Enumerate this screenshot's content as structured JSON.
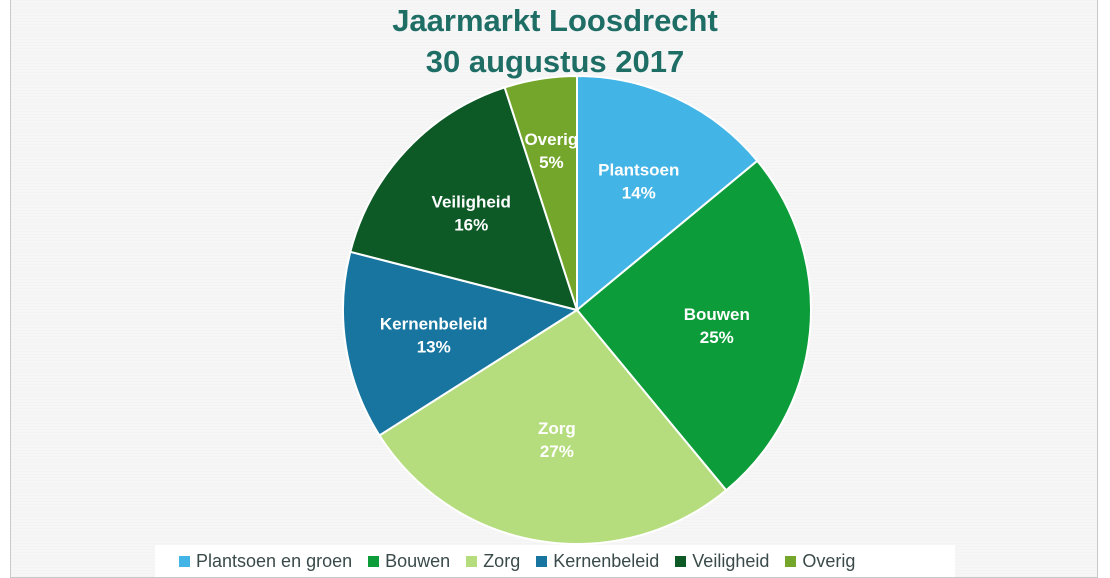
{
  "chart_data": {
    "type": "pie",
    "title_line1": "Jaarmarkt Loosdrecht",
    "title_line2": "30 augustus 2017",
    "slices": [
      {
        "name": "Plantsoen en groen",
        "label": "Plantsoen",
        "value": 14,
        "pct_label": "14%",
        "color": "#43b4e6"
      },
      {
        "name": "Bouwen",
        "label": "Bouwen",
        "value": 25,
        "pct_label": "25%",
        "color": "#0d9c3a"
      },
      {
        "name": "Zorg",
        "label": "Zorg",
        "value": 27,
        "pct_label": "27%",
        "color": "#b5dd7e"
      },
      {
        "name": "Kernenbeleid",
        "label": "Kernenbeleid",
        "value": 13,
        "pct_label": "13%",
        "color": "#1775a0"
      },
      {
        "name": "Veiligheid",
        "label": "Veiligheid",
        "value": 16,
        "pct_label": "16%",
        "color": "#0d5a27"
      },
      {
        "name": "Overig",
        "label": "Overig",
        "value": 5,
        "pct_label": "5%",
        "color": "#74a62c"
      }
    ],
    "legend_position": "bottom"
  }
}
